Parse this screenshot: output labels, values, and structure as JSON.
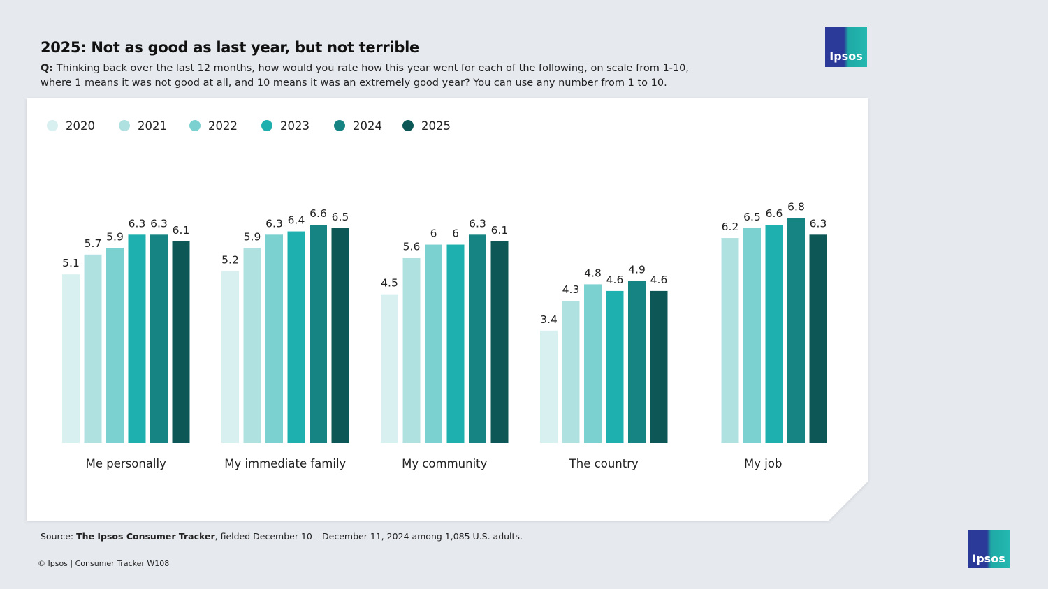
{
  "chart_data": {
    "type": "bar",
    "title": "2025: Not as good as last year, but not terrible",
    "question_label": "Q:",
    "question": "Thinking back over the last 12 months, how would you rate how this year went for each of the following, on scale from 1-10, where 1 means it was not good at all, and 10 means it was an extremely good year? You can use any number from 1 to 10.",
    "categories": [
      "Me personally",
      "My immediate family",
      "My community",
      "The country",
      "My job"
    ],
    "series": [
      {
        "name": "2020",
        "color": "#d9f0f0",
        "values": [
          5.1,
          5.2,
          4.5,
          3.4,
          null
        ]
      },
      {
        "name": "2021",
        "color": "#b0e1e1",
        "values": [
          5.7,
          5.9,
          5.6,
          4.3,
          6.2
        ]
      },
      {
        "name": "2022",
        "color": "#7ad1d0",
        "values": [
          5.9,
          6.3,
          6,
          4.8,
          6.5
        ]
      },
      {
        "name": "2023",
        "color": "#1eb0ae",
        "values": [
          6.3,
          6.4,
          6,
          4.6,
          6.6
        ]
      },
      {
        "name": "2024",
        "color": "#168482",
        "values": [
          6.3,
          6.6,
          6.3,
          4.9,
          6.8
        ]
      },
      {
        "name": "2025",
        "color": "#0d5856",
        "values": [
          6.1,
          6.5,
          6.1,
          4.6,
          6.3
        ]
      }
    ],
    "ylim": [
      0,
      8.5
    ],
    "grid": false,
    "source_label": "Source:",
    "source_name": "The Ipsos Consumer Tracker",
    "source_text": ", fielded December 10 – December 11, 2024 among 1,085 U.S. adults.",
    "copyright": "© Ipsos | Consumer Tracker W108",
    "logo": "Ipsos"
  }
}
